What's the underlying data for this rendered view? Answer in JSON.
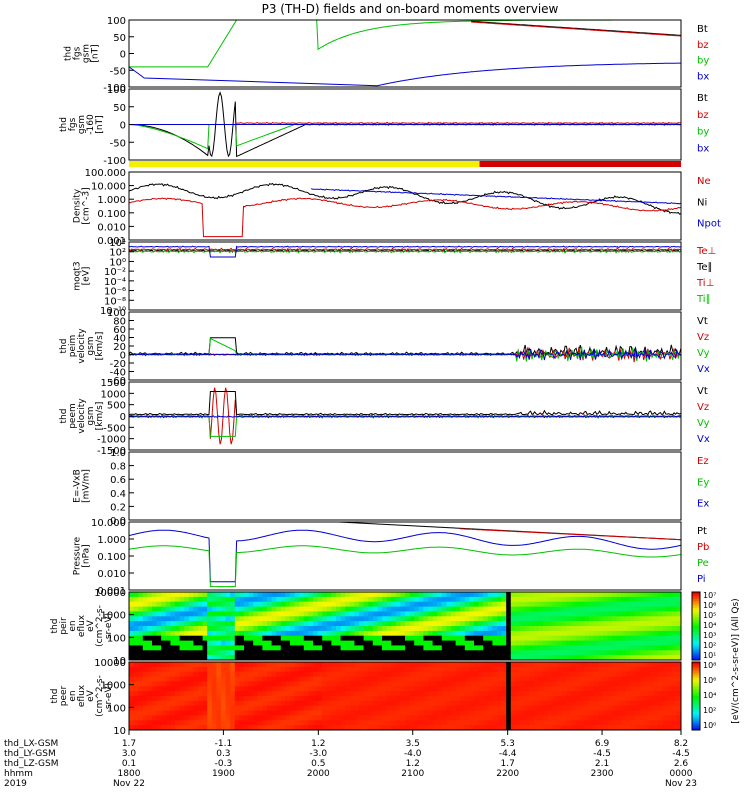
{
  "title": "P3 (TH-D) fields and on-board moments overview",
  "colors": {
    "black": "#000000",
    "red": "#d40000",
    "green": "#00c000",
    "blue": "#0000d0",
    "yellow": "#f2f200",
    "darkgreen": "#8cc800"
  },
  "chart_data": [
    {
      "id": "fgs",
      "type": "line",
      "ylabel_lines": [
        "thd",
        "fgs",
        "gsm",
        "[nT]"
      ],
      "ylim": [
        -100,
        100
      ],
      "yticks": [
        "100",
        "50",
        "0",
        "-50",
        "-100"
      ],
      "legend": [
        "Bt",
        "bz",
        "by",
        "bx"
      ],
      "legend_colors": [
        "#000000",
        "#d40000",
        "#00c000",
        "#0000d0"
      ]
    },
    {
      "id": "fgs-zoom",
      "type": "line",
      "ylabel_lines": [
        "thd",
        "fgs",
        "gsm",
        "-160",
        "[nT]"
      ],
      "ylim": [
        -120,
        120
      ],
      "yticks": [
        "100",
        "50",
        "0",
        "-50",
        "-100"
      ],
      "legend": [
        "Bt",
        "bz",
        "by",
        "bx"
      ],
      "legend_colors": [
        "#000000",
        "#d40000",
        "#00c000",
        "#0000d0"
      ]
    },
    {
      "id": "density",
      "type": "line",
      "ylabel_lines": [
        "Density",
        "[cm^-3]"
      ],
      "scale": "log",
      "yticks": [
        "100.000",
        "10.000",
        "1.000",
        "0.100",
        "0.010",
        "0.001"
      ],
      "legend": [
        "Ne",
        "Ni",
        "Npot"
      ],
      "legend_colors": [
        "#d40000",
        "#000000",
        "#0000d0"
      ]
    },
    {
      "id": "temperature",
      "type": "line",
      "ylabel_lines": [
        "moqt3",
        "[eV]"
      ],
      "scale": "log",
      "yticks": [
        "10⁴",
        "10²",
        "10⁰",
        "10⁻²",
        "10⁻⁴",
        "10⁻⁶",
        "10⁻⁸",
        "10⁻¹⁰"
      ],
      "legend": [
        "Te⊥",
        "Te∥",
        "Ti⊥",
        "Ti∥"
      ],
      "legend_colors": [
        "#d40000",
        "#000000",
        "#d40000",
        "#00c000"
      ]
    },
    {
      "id": "ion-velocity",
      "type": "line",
      "ylabel_lines": [
        "thd",
        "peim",
        "velocity",
        "gsm",
        "[km/s]"
      ],
      "ylim": [
        -60,
        100
      ],
      "yticks": [
        "100",
        "80",
        "60",
        "40",
        "20",
        "0",
        "-20",
        "-40",
        "-60"
      ],
      "legend": [
        "Vt",
        "Vz",
        "Vy",
        "Vx"
      ],
      "legend_colors": [
        "#000000",
        "#d40000",
        "#00c000",
        "#0000d0"
      ]
    },
    {
      "id": "electron-velocity",
      "type": "line",
      "ylabel_lines": [
        "thd",
        "peem",
        "velocity",
        "gsm",
        "[km/s]"
      ],
      "ylim": [
        -1500,
        1500
      ],
      "yticks": [
        "1500",
        "1000",
        "500",
        "0",
        "-500",
        "-1000",
        "-1500"
      ],
      "legend": [
        "Vt",
        "Vz",
        "Vy",
        "Vx"
      ],
      "legend_colors": [
        "#000000",
        "#d40000",
        "#00c000",
        "#0000d0"
      ]
    },
    {
      "id": "efield",
      "type": "line",
      "ylabel_lines": [
        "E=-VxB",
        "[mV/m]"
      ],
      "ylim": [
        0,
        1
      ],
      "yticks": [
        "1.0",
        "0.8",
        "0.6",
        "0.4",
        "0.2",
        "0.0"
      ],
      "legend": [
        "Ez",
        "Ey",
        "Ex"
      ],
      "legend_colors": [
        "#d40000",
        "#00c000",
        "#0000d0"
      ]
    },
    {
      "id": "pressure",
      "type": "line",
      "ylabel_lines": [
        "Pressure",
        "[nPa]"
      ],
      "scale": "log",
      "yticks": [
        "10.000",
        "1.000",
        "0.100",
        "0.010",
        "0.001"
      ],
      "legend": [
        "Pt",
        "Pb",
        "Pe",
        "Pi"
      ],
      "legend_colors": [
        "#000000",
        "#d40000",
        "#00c000",
        "#0000d0"
      ]
    },
    {
      "id": "ion-eflux",
      "type": "heatmap",
      "ylabel_lines": [
        "thd",
        "peir",
        "en",
        "eflux",
        "eV",
        "(cm^2-s-",
        "sr-eV)"
      ],
      "scale": "log",
      "yticks": [
        "10000",
        "1000",
        "100",
        "10"
      ]
    },
    {
      "id": "electron-eflux",
      "type": "heatmap",
      "ylabel_lines": [
        "thd",
        "peer",
        "en",
        "eflux",
        "eV",
        "(cm^2-s-",
        "sr-eV)"
      ],
      "scale": "log",
      "yticks": [
        "10000",
        "1000",
        "100",
        "10"
      ]
    }
  ],
  "colorbar": {
    "label": "[eV/(cm^2-s-sr-eV)] (All Qs)",
    "ion_ticks": [
      "10⁷",
      "10⁶",
      "10⁵",
      "10⁴",
      "10³",
      "10²",
      "10¹"
    ],
    "electron_ticks": [
      "10⁸",
      "10⁶",
      "10⁴",
      "10²",
      "10⁰"
    ]
  },
  "status_bar": {
    "segments": [
      {
        "color": "yellow",
        "from": 0.0,
        "to": 0.635
      },
      {
        "color": "red",
        "from": 0.635,
        "to": 1.0
      }
    ]
  },
  "time_axis": {
    "row_labels": [
      "thd_LX-GSM",
      "thd_LY-GSM",
      "thd_LZ-GSM",
      "hhmm",
      "2019"
    ],
    "columns": [
      {
        "pos": 0.0,
        "vals": [
          "1.7",
          "3.0",
          "0.1",
          "1800",
          "Nov 22"
        ]
      },
      {
        "pos": 0.171,
        "vals": [
          "-1.1",
          "0.3",
          "-0.3",
          "1900",
          ""
        ]
      },
      {
        "pos": 0.343,
        "vals": [
          "1.2",
          "-3.0",
          "0.5",
          "2000",
          ""
        ]
      },
      {
        "pos": 0.514,
        "vals": [
          "3.5",
          "-4.0",
          "1.2",
          "2100",
          ""
        ]
      },
      {
        "pos": 0.686,
        "vals": [
          "5.3",
          "-4.4",
          "1.7",
          "2200",
          ""
        ]
      },
      {
        "pos": 0.857,
        "vals": [
          "6.9",
          "-4.5",
          "2.1",
          "2300",
          ""
        ]
      },
      {
        "pos": 1.0,
        "vals": [
          "8.2",
          "-4.5",
          "2.6",
          "0000",
          "Nov 23"
        ]
      }
    ]
  }
}
